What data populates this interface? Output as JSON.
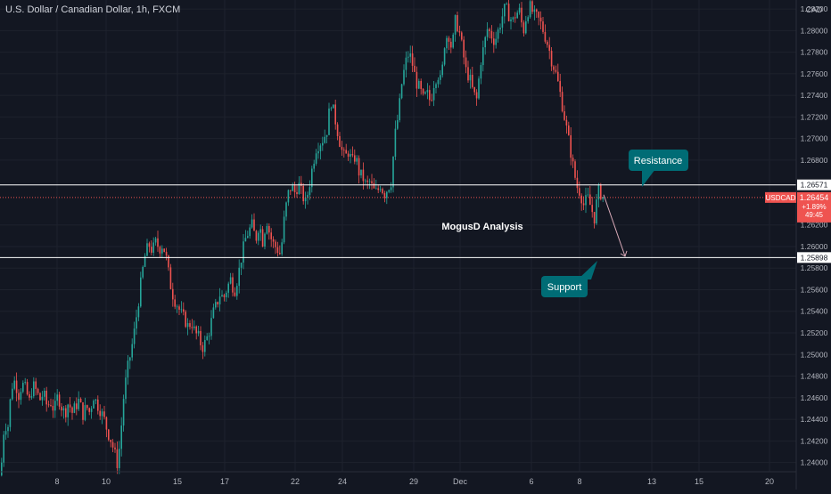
{
  "header": {
    "title": "U.S. Dollar / Canadian Dollar, 1h, FXCM"
  },
  "colors": {
    "background": "#131722",
    "up": "#26a69a",
    "down": "#ef5350",
    "callout": "#006c75",
    "text": "#d1d4dc",
    "line": "#ffffff"
  },
  "chart_data": {
    "type": "candlestick",
    "title": "U.S. Dollar / Canadian Dollar, 1h, FXCM",
    "currency": "CAD",
    "ylim": [
      1.2384,
      1.2825
    ],
    "yticks": [
      "1.28200",
      "1.28000",
      "1.27800",
      "1.27600",
      "1.27400",
      "1.27200",
      "1.27000",
      "1.26800",
      "1.26200",
      "1.26000",
      "1.25800",
      "1.25600",
      "1.25400",
      "1.25200",
      "1.25000",
      "1.24800",
      "1.24600",
      "1.24400",
      "1.24200",
      "1.24000"
    ],
    "xticks": [
      "8",
      "10",
      "15",
      "17",
      "22",
      "24",
      "29",
      "Dec",
      "6",
      "8",
      "13",
      "15",
      "20"
    ],
    "price_label": {
      "symbol": "USDCAD",
      "price": "1.26454",
      "change": "+1.89%",
      "countdown": "49:45",
      "value": 1.26454
    },
    "levels": [
      {
        "name": "Resistance",
        "value": 1.26571,
        "label": "1.26571"
      },
      {
        "name": "Support",
        "value": 1.25898,
        "label": "1.25898"
      }
    ],
    "annotations": {
      "center_text": "MogusD Analysis",
      "resistance_text": "Resistance",
      "support_text": "Support"
    },
    "projection": {
      "from": 1.2648,
      "to": 1.2591
    },
    "path": [
      [
        0,
        1.2388
      ],
      [
        4,
        1.2436
      ],
      [
        8,
        1.2432
      ],
      [
        12,
        1.247
      ],
      [
        16,
        1.2476
      ],
      [
        20,
        1.2462
      ],
      [
        24,
        1.2473
      ],
      [
        28,
        1.2468
      ],
      [
        32,
        1.2456
      ],
      [
        36,
        1.2472
      ],
      [
        40,
        1.2466
      ],
      [
        44,
        1.2458
      ],
      [
        48,
        1.2464
      ],
      [
        52,
        1.2452
      ],
      [
        56,
        1.2456
      ],
      [
        60,
        1.2448
      ],
      [
        64,
        1.2462
      ],
      [
        68,
        1.2452
      ],
      [
        72,
        1.2445
      ],
      [
        76,
        1.2456
      ],
      [
        80,
        1.2446
      ],
      [
        84,
        1.2452
      ],
      [
        88,
        1.2458
      ],
      [
        92,
        1.2444
      ],
      [
        96,
        1.2452
      ],
      [
        100,
        1.2446
      ],
      [
        104,
        1.2462
      ],
      [
        108,
        1.2454
      ],
      [
        112,
        1.2448
      ],
      [
        116,
        1.244
      ],
      [
        120,
        1.2428
      ],
      [
        124,
        1.242
      ],
      [
        128,
        1.2408
      ],
      [
        131,
        1.2398
      ],
      [
        134,
        1.242
      ],
      [
        138,
        1.2462
      ],
      [
        142,
        1.2486
      ],
      [
        146,
        1.2502
      ],
      [
        150,
        1.2522
      ],
      [
        154,
        1.2546
      ],
      [
        158,
        1.2572
      ],
      [
        162,
        1.2592
      ],
      [
        166,
        1.2602
      ],
      [
        170,
        1.2596
      ],
      [
        174,
        1.2604
      ],
      [
        178,
        1.2598
      ],
      [
        182,
        1.2602
      ],
      [
        186,
        1.2588
      ],
      [
        190,
        1.2566
      ],
      [
        194,
        1.2552
      ],
      [
        198,
        1.2546
      ],
      [
        202,
        1.2538
      ],
      [
        206,
        1.2533
      ],
      [
        210,
        1.2526
      ],
      [
        214,
        1.253
      ],
      [
        218,
        1.252
      ],
      [
        222,
        1.2516
      ],
      [
        226,
        1.2506
      ],
      [
        230,
        1.2512
      ],
      [
        234,
        1.2522
      ],
      [
        238,
        1.2538
      ],
      [
        242,
        1.2546
      ],
      [
        246,
        1.2556
      ],
      [
        250,
        1.2552
      ],
      [
        254,
        1.2562
      ],
      [
        258,
        1.257
      ],
      [
        262,
        1.2558
      ],
      [
        266,
        1.2572
      ],
      [
        270,
        1.259
      ],
      [
        274,
        1.2606
      ],
      [
        278,
        1.2614
      ],
      [
        282,
        1.262
      ],
      [
        286,
        1.2606
      ],
      [
        290,
        1.2622
      ],
      [
        294,
        1.2604
      ],
      [
        298,
        1.2626
      ],
      [
        302,
        1.261
      ],
      [
        306,
        1.2602
      ],
      [
        310,
        1.2598
      ],
      [
        314,
        1.2592
      ],
      [
        318,
        1.2626
      ],
      [
        322,
        1.2648
      ],
      [
        326,
        1.2656
      ],
      [
        330,
        1.265
      ],
      [
        334,
        1.2658
      ],
      [
        338,
        1.2648
      ],
      [
        342,
        1.264
      ],
      [
        346,
        1.2656
      ],
      [
        350,
        1.2676
      ],
      [
        354,
        1.2692
      ],
      [
        358,
        1.2696
      ],
      [
        362,
        1.27
      ],
      [
        366,
        1.2708
      ],
      [
        370,
        1.2736
      ],
      [
        374,
        1.2722
      ],
      [
        378,
        1.2706
      ],
      [
        382,
        1.269
      ],
      [
        386,
        1.2682
      ],
      [
        390,
        1.2688
      ],
      [
        394,
        1.2678
      ],
      [
        398,
        1.2684
      ],
      [
        402,
        1.2668
      ],
      [
        406,
        1.2664
      ],
      [
        410,
        1.2656
      ],
      [
        414,
        1.266
      ],
      [
        418,
        1.2652
      ],
      [
        422,
        1.265
      ],
      [
        426,
        1.2658
      ],
      [
        430,
        1.2648
      ],
      [
        434,
        1.2654
      ],
      [
        438,
        1.266
      ],
      [
        442,
        1.2702
      ],
      [
        446,
        1.2722
      ],
      [
        450,
        1.2752
      ],
      [
        454,
        1.277
      ],
      [
        458,
        1.278
      ],
      [
        462,
        1.2768
      ],
      [
        466,
        1.2752
      ],
      [
        470,
        1.2746
      ],
      [
        474,
        1.2736
      ],
      [
        478,
        1.2742
      ],
      [
        482,
        1.2734
      ],
      [
        486,
        1.2752
      ],
      [
        490,
        1.276
      ],
      [
        494,
        1.2752
      ],
      [
        498,
        1.279
      ],
      [
        502,
        1.2798
      ],
      [
        506,
        1.2782
      ],
      [
        510,
        1.281
      ],
      [
        514,
        1.28
      ],
      [
        518,
        1.2782
      ],
      [
        522,
        1.2762
      ],
      [
        526,
        1.2756
      ],
      [
        530,
        1.2742
      ],
      [
        534,
        1.2736
      ],
      [
        538,
        1.277
      ],
      [
        542,
        1.2786
      ],
      [
        546,
        1.2802
      ],
      [
        550,
        1.2796
      ],
      [
        554,
        1.279
      ],
      [
        558,
        1.28
      ],
      [
        562,
        1.2812
      ],
      [
        566,
        1.2822
      ],
      [
        570,
        1.2814
      ],
      [
        574,
        1.2808
      ],
      [
        578,
        1.2816
      ],
      [
        582,
        1.2818
      ],
      [
        586,
        1.2798
      ],
      [
        590,
        1.2816
      ],
      [
        594,
        1.2822
      ],
      [
        598,
        1.2814
      ],
      [
        602,
        1.2812
      ],
      [
        606,
        1.2806
      ],
      [
        610,
        1.2796
      ],
      [
        614,
        1.2786
      ],
      [
        618,
        1.2772
      ],
      [
        622,
        1.2762
      ],
      [
        626,
        1.2748
      ],
      [
        630,
        1.273
      ],
      [
        634,
        1.2712
      ],
      [
        638,
        1.2694
      ],
      [
        642,
        1.2674
      ],
      [
        646,
        1.2656
      ],
      [
        650,
        1.265
      ],
      [
        654,
        1.2638
      ],
      [
        658,
        1.2646
      ],
      [
        662,
        1.2636
      ],
      [
        666,
        1.2626
      ],
      [
        670,
        1.2652
      ],
      [
        674,
        1.2648
      ],
      [
        676,
        1.2645
      ]
    ]
  }
}
